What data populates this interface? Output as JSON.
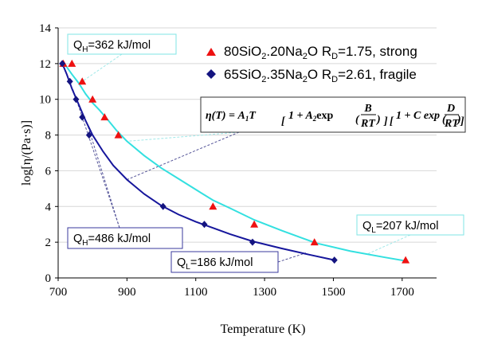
{
  "colors": {
    "strong_curve": "#33e0e0",
    "fragile_curve": "#16169c",
    "strong_marker": "#ee1111",
    "fragile_marker": "#141480",
    "ann_border_strong": "#7fe5e5",
    "ann_border_fragile": "#3a3a9c",
    "leader_strong": "#9fe8e8",
    "leader_fragile": "#555599"
  },
  "chart_data": {
    "type": "scatter",
    "xlabel": "Temperature (K)",
    "ylabel": "log[η/(Pa·s)]",
    "xlim": [
      700,
      1800
    ],
    "ylim": [
      0,
      14
    ],
    "x_ticks": [
      "700",
      "900",
      "1100",
      "1300",
      "1500",
      "1700"
    ],
    "y_ticks": [
      "0",
      "2",
      "4",
      "6",
      "8",
      "10",
      "12",
      "14"
    ],
    "grid": "horizontal",
    "legend_placement": "top-right",
    "series": [
      {
        "key": "strong",
        "name": "80SiO2.20Na2O RD=1.75, strong",
        "marker": "triangle",
        "points": [
          [
            715,
            12
          ],
          [
            740,
            12
          ],
          [
            770,
            11
          ],
          [
            800,
            10
          ],
          [
            835,
            9
          ],
          [
            875,
            8
          ],
          [
            1150,
            4
          ],
          [
            1270,
            3
          ],
          [
            1445,
            2
          ],
          [
            1710,
            1
          ]
        ],
        "curve": [
          [
            718,
            12.0
          ],
          [
            740,
            11.4
          ],
          [
            760,
            10.9
          ],
          [
            780,
            10.3
          ],
          [
            800,
            9.8
          ],
          [
            820,
            9.4
          ],
          [
            840,
            8.95
          ],
          [
            870,
            8.25
          ],
          [
            900,
            7.65
          ],
          [
            950,
            6.85
          ],
          [
            1000,
            6.15
          ],
          [
            1050,
            5.55
          ],
          [
            1100,
            4.95
          ],
          [
            1150,
            4.35
          ],
          [
            1200,
            3.9
          ],
          [
            1270,
            3.25
          ],
          [
            1350,
            2.65
          ],
          [
            1450,
            1.95
          ],
          [
            1550,
            1.5
          ],
          [
            1650,
            1.15
          ],
          [
            1710,
            0.95
          ]
        ]
      },
      {
        "key": "fragile",
        "name": "65SiO2.35Na2O RD=2.61, fragile",
        "marker": "diamond",
        "points": [
          [
            712,
            12
          ],
          [
            734,
            11
          ],
          [
            752,
            10
          ],
          [
            770,
            9
          ],
          [
            790,
            8
          ],
          [
            1005,
            4
          ],
          [
            1125,
            3
          ],
          [
            1265,
            2
          ],
          [
            1503,
            1
          ]
        ],
        "curve": [
          [
            712,
            12.0
          ],
          [
            725,
            11.4
          ],
          [
            740,
            10.6
          ],
          [
            760,
            9.7
          ],
          [
            780,
            8.8
          ],
          [
            800,
            8.0
          ],
          [
            830,
            7.1
          ],
          [
            860,
            6.3
          ],
          [
            900,
            5.5
          ],
          [
            950,
            4.7
          ],
          [
            1000,
            4.05
          ],
          [
            1050,
            3.55
          ],
          [
            1100,
            3.15
          ],
          [
            1150,
            2.8
          ],
          [
            1200,
            2.45
          ],
          [
            1265,
            2.05
          ],
          [
            1350,
            1.65
          ],
          [
            1430,
            1.3
          ],
          [
            1503,
            1.0
          ]
        ]
      }
    ],
    "annotations": {
      "qh_strong": {
        "label": "Q",
        "sub": "H",
        "rest": "=362 kJ/mol"
      },
      "qh_fragile": {
        "label": "Q",
        "sub": "H",
        "rest": "=486 kJ/mol"
      },
      "ql_fragile": {
        "label": "Q",
        "sub": "L",
        "rest": "=186 kJ/mol"
      },
      "ql_strong": {
        "label": "Q",
        "sub": "L",
        "rest": "=207 kJ/mol"
      }
    },
    "equation": {
      "lhs": "η(T) = A",
      "sub1": "1",
      "t": "T",
      "part1": "1 + A",
      "sub2": "2",
      "exp1": "exp",
      "frac1_num": "B",
      "frac1_den": "RT",
      "part2": "1 + C exp",
      "frac2_num": "D",
      "frac2_den": "RT"
    }
  }
}
